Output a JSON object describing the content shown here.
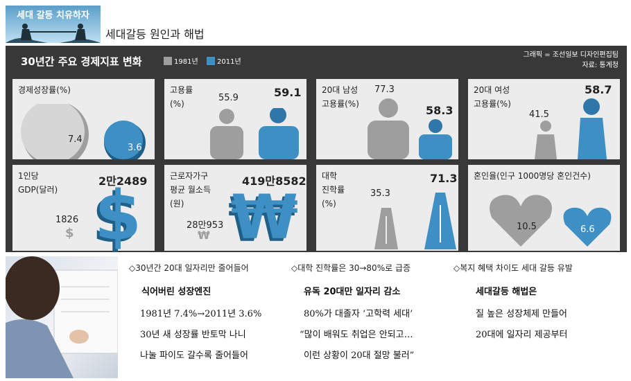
{
  "header": {
    "badge": "세대 갈등 치유하자",
    "subtitle": "세대갈등 원인과 해법"
  },
  "panel": {
    "title": "30년간 주요 경제지표 변화",
    "legend": [
      {
        "label": "1981년",
        "color": "#9e9e9e"
      },
      {
        "label": "2011년",
        "color": "#3e8fc4"
      }
    ],
    "credit": [
      "그래픽 = 조선일보 디자인편집팀",
      "자료: 통계청"
    ]
  },
  "indicators": {
    "growth": {
      "label": "경제성장률(%)",
      "v1981": "7.4",
      "v2011": "3.6"
    },
    "employment": {
      "label1": "고용률",
      "label2": "(%)",
      "v1981": "55.9",
      "v2011": "59.1"
    },
    "male20": {
      "label1": "20대 남성",
      "label2": "고용률(%)",
      "v1981": "77.3",
      "v2011": "58.3"
    },
    "female20": {
      "label1": "20대 여성",
      "label2": "고용률(%)",
      "v1981": "41.5",
      "v2011": "58.7"
    },
    "gdp": {
      "label1": "1인당",
      "label2": "GDP(달러)",
      "v1981": "1826",
      "v2011": "2만2489",
      "symbol": "$"
    },
    "income": {
      "label1": "근로자가구",
      "label2": "평균 월소득",
      "label3": "(원)",
      "v1981": "28만953",
      "v2011": "419만8582",
      "symbol": "₩"
    },
    "college": {
      "label1": "대학",
      "label2": "진학률",
      "label3": "(%)",
      "v1981": "35.3",
      "v2011": "71.3"
    },
    "marriage": {
      "label": "혼인율(인구 1000명당 혼인건수)",
      "v1981": "10.5",
      "v2011": "6.6"
    }
  },
  "columns": [
    {
      "bullet": "◇30년간 20대 일자리만 줄어들어",
      "heading": "식어버린 성장엔진",
      "lines": [
        "1981년 7.4%→2011년 3.6%",
        "30년 새 성장률 반토막 나니",
        "나눌 파이도 갈수록 줄어들어"
      ]
    },
    {
      "bullet": "◇대학 진학률은 30→80%로 급증",
      "heading": "유독 20대만 일자리 감소",
      "lines": [
        "80%가 대졸자 ‘고학력 세대’",
        "“많이 배워도 취업은 안되고…",
        "이런 상황이 20대 절망 불러”"
      ]
    },
    {
      "bullet": "◇복지 혜택 차이도 세대 갈등 유발",
      "heading": "세대갈등 해법은",
      "lines": [
        "질 높은 성장체제 만들어",
        "20대에 일자리 제공부터"
      ]
    }
  ]
}
